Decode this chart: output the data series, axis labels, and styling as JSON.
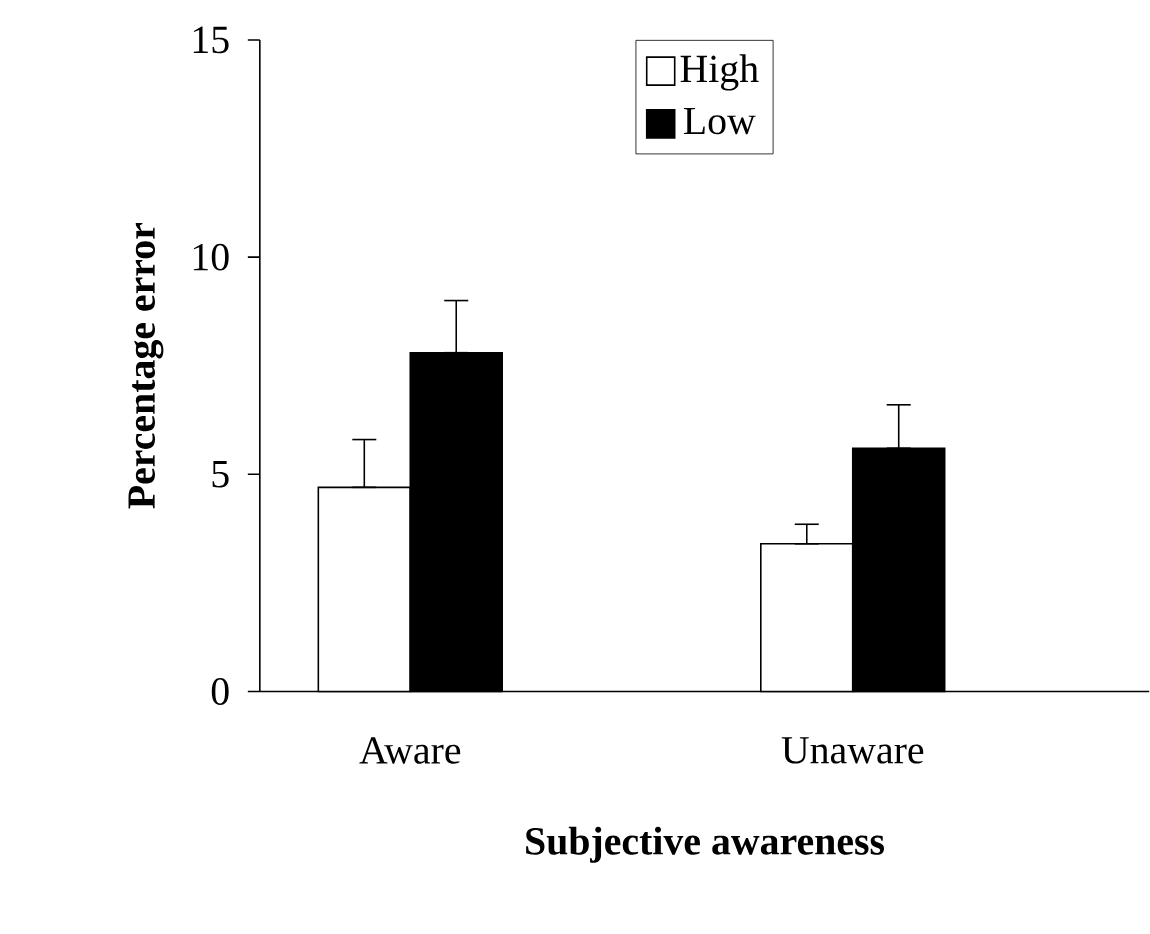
{
  "chart_data": {
    "type": "bar",
    "xlabel": "Subjective awareness",
    "ylabel": "Percentage error",
    "categories": [
      "Aware",
      "Unaware"
    ],
    "series": [
      {
        "name": "High",
        "color": "#ffffff",
        "values": [
          4.7,
          3.4
        ],
        "errors": [
          [
            4.7,
            5.8
          ],
          [
            3.4,
            3.85
          ]
        ]
      },
      {
        "name": "Low",
        "color": "#000000",
        "values": [
          7.8,
          5.6
        ],
        "errors": [
          [
            7.8,
            9.0
          ],
          [
            5.6,
            6.6
          ]
        ]
      }
    ],
    "ylim": [
      0,
      15
    ],
    "yticks": [
      0,
      5,
      10,
      15
    ],
    "grid": false,
    "legend": "top"
  }
}
